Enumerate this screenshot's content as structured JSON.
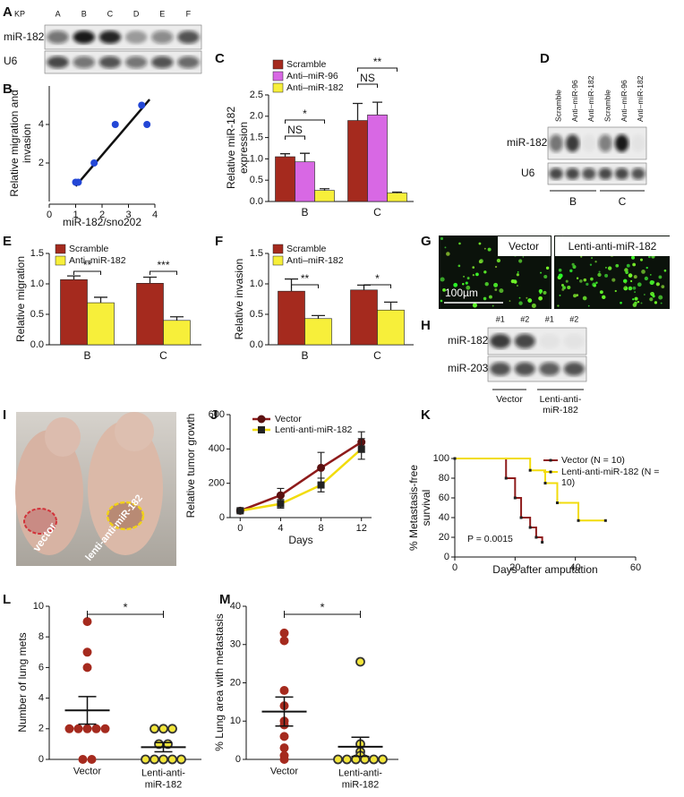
{
  "panels": [
    "A",
    "B",
    "C",
    "D",
    "E",
    "F",
    "G",
    "H",
    "I",
    "J",
    "K",
    "L",
    "M"
  ],
  "blot_A": {
    "lanes": [
      "KP",
      "A",
      "B",
      "C",
      "D",
      "E",
      "F"
    ],
    "rows": [
      "miR-182",
      "U6"
    ]
  },
  "blot_D": {
    "lanes": [
      "Scramble",
      "Anti–miR-96",
      "Anti–miR-182",
      "Scramble",
      "Anti–miR-96",
      "Anti–miR-182"
    ],
    "rows": [
      "miR-182",
      "U6"
    ],
    "groups": [
      "B",
      "C"
    ]
  },
  "image_G": {
    "labels": [
      "Vector",
      "Lenti-anti-miR-182"
    ],
    "scale_bar": "100µm"
  },
  "blot_H": {
    "lanes": [
      "#1",
      "#2",
      "#1",
      "#2"
    ],
    "rows": [
      "miR-182",
      "miR-203"
    ],
    "groups": [
      "Vector",
      "Lenti-anti-miR-182"
    ]
  },
  "image_I": {
    "labels": [
      "vector",
      "lenti-anti-miR-182"
    ]
  },
  "chart_data": [
    {
      "type": "scatter",
      "xlabel": "miR-182/sno202",
      "ylabel": "Relative migration and invasion",
      "x": [
        1.0,
        1.1,
        1.7,
        2.5,
        3.5,
        3.7
      ],
      "y": [
        1,
        1,
        2,
        4,
        5,
        4
      ],
      "color": "#2347d6",
      "fit": {
        "x": [
          1,
          3.8
        ],
        "y": [
          0.8,
          5.3
        ]
      },
      "xlim": [
        0,
        4
      ],
      "xticks": [
        0,
        1,
        2,
        3,
        4
      ],
      "ylim": [
        0,
        6
      ],
      "yticks": [
        2,
        4
      ]
    },
    {
      "type": "bar",
      "ylabel": "Relative miR-182 expression",
      "categories": [
        "B",
        "C"
      ],
      "series": [
        {
          "name": "Scramble",
          "color": "#a52a1e",
          "values": [
            1.05,
            1.9
          ],
          "errors": [
            0.07,
            0.4
          ]
        },
        {
          "name": "Anti–miR-96",
          "color": "#d868e4",
          "values": [
            0.93,
            2.03
          ],
          "errors": [
            0.2,
            0.3
          ]
        },
        {
          "name": "Anti–miR-182",
          "color": "#f7ef3a",
          "values": [
            0.26,
            0.2
          ],
          "errors": [
            0.04,
            0.02
          ]
        }
      ],
      "ylim": [
        0,
        2.5
      ],
      "yticks": [
        {
          "value": 0,
          "label": "0.0"
        },
        0.5,
        {
          "value": 1,
          "label": "1.0"
        },
        1.5,
        {
          "value": 2,
          "label": "2.0"
        },
        2.5
      ],
      "annotations": [
        "NS",
        "*",
        "NS",
        "**"
      ]
    },
    {
      "type": "bar",
      "ylabel": "Relative migration",
      "categories": [
        "B",
        "C"
      ],
      "series": [
        {
          "name": "Scramble",
          "color": "#a52a1e",
          "values": [
            1.07,
            1.01
          ],
          "errors": [
            0.06,
            0.1
          ]
        },
        {
          "name": "Anti–miR-182",
          "color": "#f7ef3a",
          "values": [
            0.69,
            0.4
          ],
          "errors": [
            0.09,
            0.06
          ]
        }
      ],
      "ylim": [
        0,
        1.5
      ],
      "yticks": [
        {
          "value": 0,
          "label": "0.0"
        },
        0.5,
        {
          "value": 1,
          "label": "1.0"
        },
        1.5
      ],
      "annotations": [
        "**",
        "***"
      ]
    },
    {
      "type": "bar",
      "ylabel": "Relative invasion",
      "categories": [
        "B",
        "C"
      ],
      "series": [
        {
          "name": "Scramble",
          "color": "#a52a1e",
          "values": [
            0.88,
            0.9
          ],
          "errors": [
            0.2,
            0.08
          ]
        },
        {
          "name": "Anti–miR-182",
          "color": "#f7ef3a",
          "values": [
            0.43,
            0.57
          ],
          "errors": [
            0.05,
            0.13
          ]
        }
      ],
      "ylim": [
        0,
        1.5
      ],
      "yticks": [
        {
          "value": 0,
          "label": "0.0"
        },
        0.5,
        {
          "value": 1,
          "label": "1.0"
        },
        1.5
      ],
      "annotations": [
        "**",
        "*"
      ]
    },
    {
      "type": "line",
      "xlabel": "Days",
      "ylabel": "Relative tumor growth",
      "x": [
        0,
        4,
        8,
        12
      ],
      "series": [
        {
          "name": "Vector",
          "color": "#8e1b1b",
          "marker": "circle",
          "values": [
            40,
            130,
            290,
            440
          ],
          "errors": [
            10,
            40,
            90,
            60
          ]
        },
        {
          "name": "Lenti-anti-miR-182",
          "color": "#f2dc0c",
          "marker": "square",
          "values": [
            40,
            80,
            190,
            400
          ],
          "errors": [
            10,
            25,
            40,
            60
          ]
        }
      ],
      "xlim": [
        -1,
        13
      ],
      "xticks": [
        0,
        4,
        8,
        12
      ],
      "ylim": [
        0,
        600
      ],
      "yticks": [
        0,
        200,
        400,
        600
      ]
    },
    {
      "type": "survival",
      "xlabel": "Days after amputation",
      "ylabel": "% Metastasis-free survival",
      "series": [
        {
          "name": "Vector (N = 10)",
          "color": "#8e1b1b",
          "x": [
            0,
            17,
            20,
            22,
            25,
            27,
            29
          ],
          "values": [
            100,
            80,
            60,
            40,
            30,
            20,
            15
          ]
        },
        {
          "name": "Lenti-anti-miR-182 (N = 10)",
          "color": "#f2dc0c",
          "x": [
            0,
            25,
            30,
            34,
            41,
            50
          ],
          "values": [
            100,
            88,
            75,
            55,
            37,
            37
          ]
        }
      ],
      "annotation": "P = 0.0015",
      "xlim": [
        0,
        60
      ],
      "xticks": [
        0,
        20,
        40,
        60
      ],
      "ylim": [
        0,
        100
      ],
      "yticks": [
        0,
        20,
        40,
        60,
        80,
        100
      ]
    },
    {
      "type": "dot",
      "ylabel": "Number of lung mets",
      "groups": [
        {
          "name": "Vector",
          "color": "#a52a1e",
          "values": [
            9,
            7,
            6,
            2,
            2,
            2,
            2,
            2,
            0,
            0
          ],
          "mean": 3.2,
          "sem": 0.9
        },
        {
          "name": "Lenti-anti-miR-182",
          "color": "#f2e53a",
          "values": [
            2,
            2,
            2,
            1,
            1,
            0,
            0,
            0,
            0,
            0
          ],
          "mean": 0.8,
          "sem": 0.3
        }
      ],
      "ylim": [
        0,
        10
      ],
      "yticks": [
        0,
        2,
        4,
        6,
        8,
        10
      ],
      "annotation": "*"
    },
    {
      "type": "dot",
      "ylabel": "% Lung area with metastasis",
      "groups": [
        {
          "name": "Vector",
          "color": "#a52a1e",
          "values": [
            33,
            31,
            18,
            14,
            10,
            9,
            6,
            3,
            1,
            0
          ],
          "mean": 12.5,
          "sem": 3.8
        },
        {
          "name": "Lenti-anti-miR-182",
          "color": "#f2e53a",
          "values": [
            25.5,
            4,
            2,
            1,
            0,
            0,
            0,
            0,
            0,
            0
          ],
          "mean": 3.3,
          "sem": 2.5
        }
      ],
      "ylim": [
        0,
        40
      ],
      "yticks": [
        0,
        10,
        20,
        30,
        40
      ],
      "annotation": "*"
    }
  ]
}
